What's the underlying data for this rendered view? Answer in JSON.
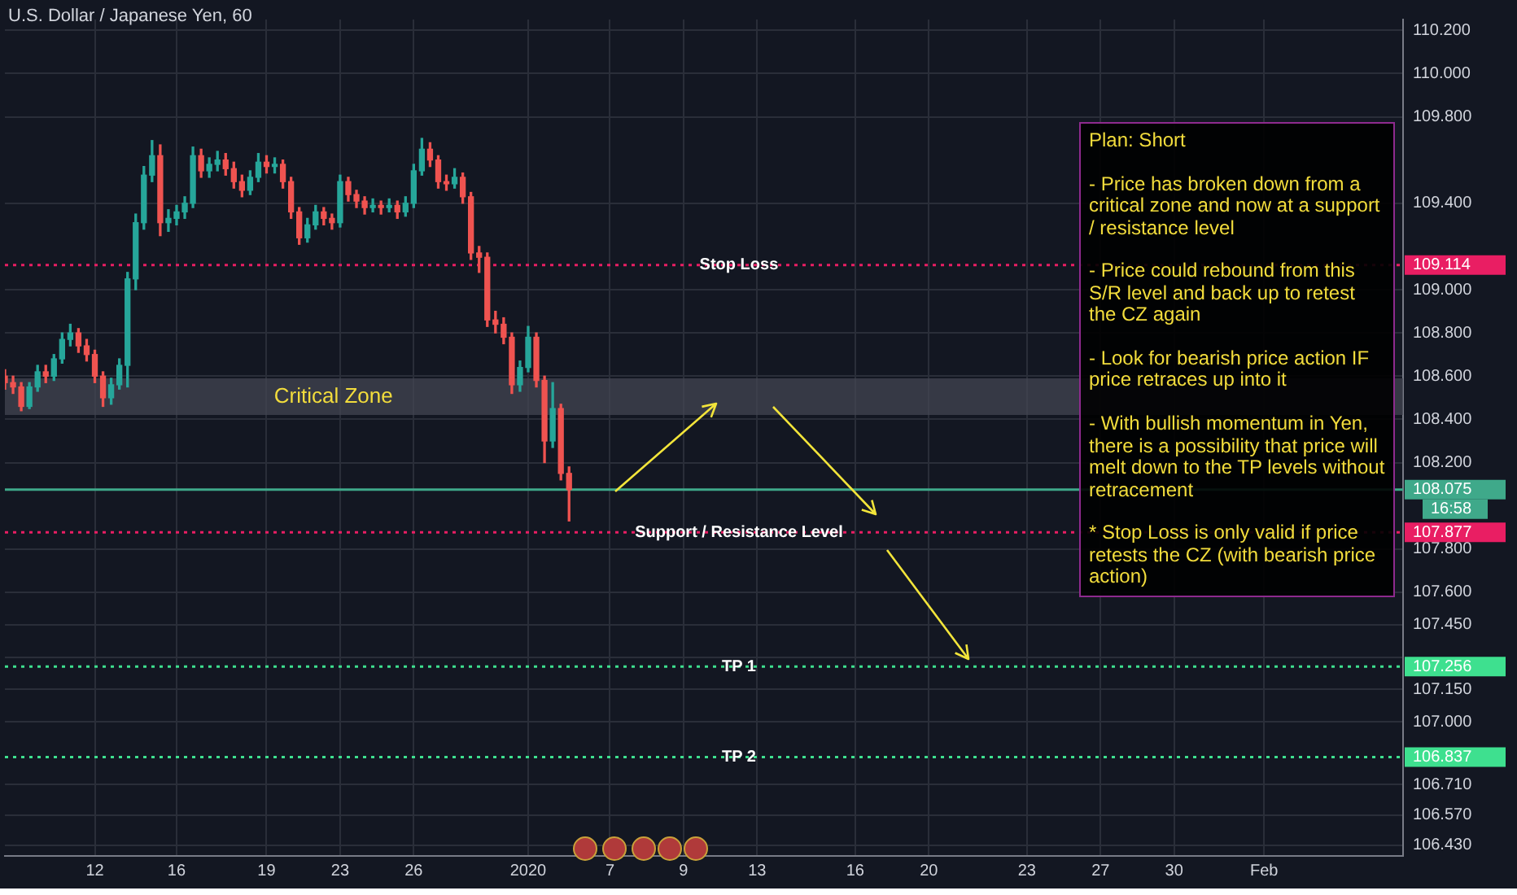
{
  "chart_data": {
    "type": "candlestick",
    "title": "U.S. Dollar / Japanese Yen, 60",
    "categories": [
      null,
      null,
      null,
      null,
      null,
      null,
      null,
      null,
      null,
      null,
      null,
      "12",
      null,
      null,
      null,
      null,
      null,
      null,
      null,
      null,
      null,
      "16",
      null,
      null,
      null,
      null,
      null,
      null,
      null,
      null,
      null,
      null,
      "19",
      null,
      null,
      null,
      null,
      null,
      null,
      null,
      null,
      "23",
      null,
      null,
      null,
      null,
      null,
      null,
      null,
      null,
      "26",
      null,
      null,
      null,
      null,
      null,
      null,
      null,
      null,
      null,
      null,
      null,
      null,
      null,
      "2020",
      null,
      null,
      null,
      null,
      null,
      null,
      null,
      null,
      null,
      "7",
      null,
      null,
      null,
      null,
      null,
      null,
      null,
      null,
      "9",
      null,
      null,
      null,
      null,
      null,
      null,
      null,
      null,
      "13",
      null,
      null,
      null,
      null,
      null,
      null,
      null,
      null,
      null,
      null,
      null,
      "16",
      null,
      null,
      null,
      null,
      null,
      null,
      null,
      null,
      "20",
      null,
      null,
      null,
      null,
      null,
      null,
      null,
      null,
      null,
      null,
      null,
      "23",
      null,
      null,
      null,
      null,
      null,
      null,
      null,
      null,
      "27",
      null,
      null,
      null,
      null,
      null,
      null,
      null,
      null,
      "30",
      null,
      null,
      null,
      null,
      null,
      null,
      null,
      null,
      null,
      null,
      "Feb",
      null,
      null,
      null,
      null,
      null,
      null,
      null,
      null,
      null,
      null,
      null,
      null,
      null,
      null,
      null,
      null,
      null
    ],
    "ohlc": [
      [
        108.6,
        108.63,
        108.54,
        108.57
      ],
      [
        108.57,
        108.6,
        108.52,
        108.55
      ],
      [
        108.55,
        108.57,
        108.44,
        108.46
      ],
      [
        108.46,
        108.57,
        108.45,
        108.55
      ],
      [
        108.55,
        108.65,
        108.53,
        108.62
      ],
      [
        108.62,
        108.65,
        108.57,
        108.6
      ],
      [
        108.6,
        108.7,
        108.58,
        108.68
      ],
      [
        108.68,
        108.8,
        108.66,
        108.77
      ],
      [
        108.77,
        108.84,
        108.74,
        108.8
      ],
      [
        108.8,
        108.82,
        108.71,
        108.74
      ],
      [
        108.74,
        108.77,
        108.67,
        108.7
      ],
      [
        108.7,
        108.72,
        108.57,
        108.6
      ],
      [
        108.6,
        108.62,
        108.46,
        108.5
      ],
      [
        108.5,
        108.59,
        108.47,
        108.56
      ],
      [
        108.56,
        108.68,
        108.54,
        108.65
      ],
      [
        108.65,
        109.08,
        108.55,
        109.05
      ],
      [
        109.05,
        109.35,
        109.0,
        109.31
      ],
      [
        109.31,
        109.57,
        109.28,
        109.53
      ],
      [
        109.53,
        109.69,
        109.5,
        109.62
      ],
      [
        109.62,
        109.67,
        109.25,
        109.31
      ],
      [
        109.31,
        109.37,
        109.27,
        109.33
      ],
      [
        109.33,
        109.39,
        109.3,
        109.36
      ],
      [
        109.36,
        109.43,
        109.33,
        109.4
      ],
      [
        109.4,
        109.66,
        109.38,
        109.62
      ],
      [
        109.62,
        109.65,
        109.52,
        109.55
      ],
      [
        109.55,
        109.61,
        109.52,
        109.58
      ],
      [
        109.58,
        109.64,
        109.55,
        109.6
      ],
      [
        109.6,
        109.63,
        109.53,
        109.56
      ],
      [
        109.56,
        109.59,
        109.47,
        109.5
      ],
      [
        109.5,
        109.53,
        109.43,
        109.46
      ],
      [
        109.46,
        109.55,
        109.44,
        109.52
      ],
      [
        109.52,
        109.63,
        109.5,
        109.59
      ],
      [
        109.59,
        109.62,
        109.54,
        109.57
      ],
      [
        109.57,
        109.61,
        109.54,
        109.58
      ],
      [
        109.58,
        109.6,
        109.47,
        109.5
      ],
      [
        109.5,
        109.52,
        109.33,
        109.36
      ],
      [
        109.36,
        109.38,
        109.21,
        109.24
      ],
      [
        109.24,
        109.33,
        109.22,
        109.3
      ],
      [
        109.3,
        109.39,
        109.28,
        109.36
      ],
      [
        109.36,
        109.38,
        109.3,
        109.33
      ],
      [
        109.33,
        109.35,
        109.28,
        109.31
      ],
      [
        109.31,
        109.53,
        109.29,
        109.5
      ],
      [
        109.5,
        109.52,
        109.41,
        109.44
      ],
      [
        109.44,
        109.46,
        109.38,
        109.41
      ],
      [
        109.41,
        109.43,
        109.35,
        109.38
      ],
      [
        109.38,
        109.42,
        109.36,
        109.39
      ],
      [
        109.39,
        109.41,
        109.35,
        109.38
      ],
      [
        109.38,
        109.42,
        109.36,
        109.39
      ],
      [
        109.39,
        109.41,
        109.33,
        109.36
      ],
      [
        109.36,
        109.43,
        109.34,
        109.4
      ],
      [
        109.4,
        109.58,
        109.38,
        109.55
      ],
      [
        109.55,
        109.7,
        109.53,
        109.65
      ],
      [
        109.65,
        109.68,
        109.57,
        109.6
      ],
      [
        109.6,
        109.62,
        109.47,
        109.5
      ],
      [
        109.5,
        109.53,
        109.46,
        109.49
      ],
      [
        109.49,
        109.56,
        109.47,
        109.52
      ],
      [
        109.52,
        109.54,
        109.4,
        109.43
      ],
      [
        109.43,
        109.45,
        109.14,
        109.17
      ],
      [
        109.17,
        109.2,
        109.08,
        109.15
      ],
      [
        109.15,
        109.17,
        108.83,
        108.86
      ],
      [
        108.86,
        108.9,
        108.8,
        108.84
      ],
      [
        108.84,
        108.87,
        108.75,
        108.78
      ],
      [
        108.78,
        108.8,
        108.52,
        108.56
      ],
      [
        108.56,
        108.67,
        108.53,
        108.64
      ],
      [
        108.64,
        108.83,
        108.62,
        108.78
      ],
      [
        108.78,
        108.8,
        108.55,
        108.58
      ],
      [
        108.58,
        108.6,
        108.2,
        108.3
      ],
      [
        108.3,
        108.57,
        108.27,
        108.45
      ],
      [
        108.45,
        108.47,
        108.12,
        108.15
      ],
      [
        108.15,
        108.18,
        107.93,
        108.075
      ],
      null,
      null,
      null,
      null,
      null,
      null,
      null,
      null,
      null,
      null,
      null,
      null,
      null,
      null,
      null,
      null,
      null,
      null,
      null,
      null,
      null,
      null,
      null,
      null,
      null,
      null,
      null,
      null,
      null,
      null,
      null,
      null,
      null,
      null,
      null,
      null,
      null,
      null,
      null,
      null,
      null,
      null,
      null,
      null,
      null,
      null,
      null,
      null,
      null,
      null,
      null,
      null,
      null,
      null,
      null,
      null,
      null,
      null,
      null,
      null,
      null,
      null,
      null,
      null,
      null,
      null,
      null,
      null,
      null,
      null,
      null,
      null,
      null,
      null,
      null,
      null,
      null,
      null,
      null,
      null,
      null,
      null,
      null,
      null,
      null,
      null,
      null,
      null,
      null,
      null,
      null,
      null,
      null,
      null,
      null,
      null,
      null,
      null,
      null,
      null,
      null,
      null
    ],
    "ylim": [
      106.38,
      110.25
    ],
    "yticks": [
      {
        "value": 110.2,
        "label": "110.200"
      },
      {
        "value": 110.0,
        "label": "110.000"
      },
      {
        "value": 109.8,
        "label": "109.800"
      },
      {
        "value": 109.4,
        "label": "109.400"
      },
      {
        "value": 109.0,
        "label": "109.000"
      },
      {
        "value": 108.8,
        "label": "108.800"
      },
      {
        "value": 108.6,
        "label": "108.600"
      },
      {
        "value": 108.4,
        "label": "108.400"
      },
      {
        "value": 108.2,
        "label": "108.200"
      },
      {
        "value": 107.8,
        "label": "107.800"
      },
      {
        "value": 107.6,
        "label": "107.600"
      },
      {
        "value": 107.45,
        "label": "107.450"
      },
      {
        "value": 107.3,
        "label": null
      },
      {
        "value": 107.15,
        "label": "107.150"
      },
      {
        "value": 107.0,
        "label": "107.000"
      },
      {
        "value": 106.71,
        "label": "106.710"
      },
      {
        "value": 106.57,
        "label": "106.570"
      },
      {
        "value": 106.43,
        "label": "106.430"
      }
    ],
    "grid": true,
    "bands": [
      {
        "axis": "y",
        "from": 108.42,
        "to": 108.59,
        "label": "Critical Zone",
        "color": "#434651"
      }
    ],
    "ref_lines": [
      {
        "axis": "y",
        "value": 109.114,
        "label": "Stop Loss",
        "color": "#e91e63",
        "line_style": "dotted"
      },
      {
        "axis": "y",
        "value": 108.075,
        "label": null,
        "color": "#3fa98a",
        "line_style": "solid"
      },
      {
        "axis": "y",
        "value": 107.877,
        "label": "Support / Resistance Level",
        "color": "#e91e63",
        "line_style": "dotted"
      },
      {
        "axis": "y",
        "value": 107.256,
        "label": "TP 1",
        "color": "#3ee08f",
        "line_style": "dotted"
      },
      {
        "axis": "y",
        "value": 106.837,
        "label": "TP 2",
        "color": "#3ee08f",
        "line_style": "dotted"
      }
    ],
    "annotations": [
      "109.114",
      "108.075",
      "107.877",
      "107.256",
      "106.837",
      "16:58",
      "Plan: Short\n\n- Price has broken down from a critical zone and now at a support / resistance level\n\n- Price could rebound from this S/R level and back up to retest the CZ again\n\n- Look for bearish price action IF price retraces up into it\n\n- With bullish momentum in Yen, there is a possibility that price will melt down to the TP levels without retracement\n\n* Stop Loss is only valid if price retests the CZ (with bearish price action)"
    ]
  }
}
